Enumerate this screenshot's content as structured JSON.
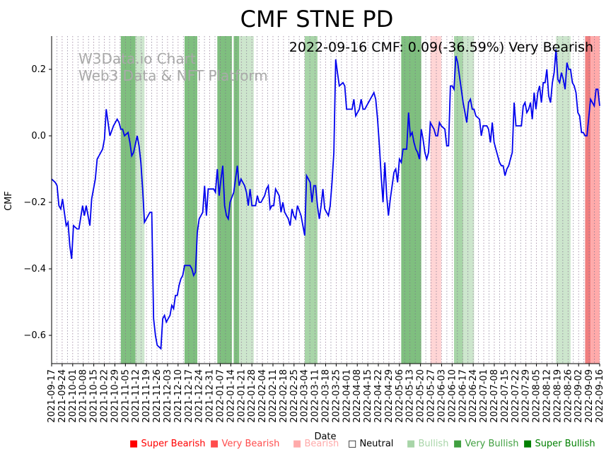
{
  "chart_data": {
    "type": "line",
    "title": "CMF STNE PD",
    "annotation": "2022-09-16 CMF: 0.09(-36.59%) Very Bearish",
    "watermark": [
      "W3Data.io Chart",
      "Web3 Data & NFT Platform"
    ],
    "xlabel": "Date",
    "ylabel": "CMF",
    "ylim": [
      -0.685,
      0.3
    ],
    "yticks": [
      0.2,
      0.0,
      -0.2,
      -0.4,
      -0.6
    ],
    "ytick_labels": [
      "0.2",
      "0.0",
      "−0.2",
      "−0.4",
      "−0.6"
    ],
    "xrange": [
      "2021-09-17",
      "2022-09-16"
    ],
    "xtick_labels": [
      "2021-09-17",
      "2021-09-24",
      "2021-10-01",
      "2021-10-08",
      "2021-10-15",
      "2021-10-22",
      "2021-10-29",
      "2021-11-05",
      "2021-11-12",
      "2021-11-19",
      "2021-11-26",
      "2021-12-03",
      "2021-12-10",
      "2021-12-17",
      "2021-12-24",
      "2021-12-31",
      "2022-01-07",
      "2022-01-14",
      "2022-01-21",
      "2022-01-28",
      "2022-02-04",
      "2022-02-11",
      "2022-02-18",
      "2022-02-25",
      "2022-03-04",
      "2022-03-11",
      "2022-03-18",
      "2022-03-25",
      "2022-04-01",
      "2022-04-08",
      "2022-04-15",
      "2022-04-22",
      "2022-04-29",
      "2022-05-06",
      "2022-05-13",
      "2022-05-20",
      "2022-05-27",
      "2022-06-03",
      "2022-06-10",
      "2022-06-17",
      "2022-06-24",
      "2022-07-01",
      "2022-07-08",
      "2022-07-15",
      "2022-07-22",
      "2022-07-29",
      "2022-08-05",
      "2022-08-12",
      "2022-08-19",
      "2022-08-26",
      "2022-09-02",
      "2022-09-09",
      "2022-09-16"
    ],
    "series": [
      {
        "name": "CMF",
        "color": "#0000ee",
        "points": [
          [
            0,
            -0.13
          ],
          [
            2,
            -0.14
          ],
          [
            3,
            -0.15
          ],
          [
            4,
            -0.21
          ],
          [
            5,
            -0.22
          ],
          [
            6,
            -0.19
          ],
          [
            8,
            -0.27
          ],
          [
            9,
            -0.26
          ],
          [
            10,
            -0.33
          ],
          [
            11,
            -0.37
          ],
          [
            12,
            -0.27
          ],
          [
            14,
            -0.28
          ],
          [
            15,
            -0.28
          ],
          [
            17,
            -0.21
          ],
          [
            18,
            -0.24
          ],
          [
            19,
            -0.21
          ],
          [
            21,
            -0.27
          ],
          [
            22,
            -0.19
          ],
          [
            24,
            -0.13
          ],
          [
            25,
            -0.07
          ],
          [
            28,
            -0.04
          ],
          [
            29,
            -0.01
          ],
          [
            30,
            0.08
          ],
          [
            32,
            0.0
          ],
          [
            34,
            0.03
          ],
          [
            36,
            0.05
          ],
          [
            37,
            0.04
          ],
          [
            38,
            0.02
          ],
          [
            39,
            0.02
          ],
          [
            40,
            0.0
          ],
          [
            42,
            0.01
          ],
          [
            43,
            -0.02
          ],
          [
            44,
            -0.06
          ],
          [
            45,
            -0.05
          ],
          [
            47,
            0.0
          ],
          [
            48,
            -0.03
          ],
          [
            49,
            -0.08
          ],
          [
            50,
            -0.16
          ],
          [
            51,
            -0.26
          ],
          [
            53,
            -0.24
          ],
          [
            54,
            -0.23
          ],
          [
            55,
            -0.23
          ],
          [
            56,
            -0.55
          ],
          [
            57,
            -0.6
          ],
          [
            58,
            -0.63
          ],
          [
            60,
            -0.64
          ],
          [
            61,
            -0.55
          ],
          [
            62,
            -0.54
          ],
          [
            63,
            -0.56
          ],
          [
            64,
            -0.55
          ],
          [
            65,
            -0.54
          ],
          [
            66,
            -0.51
          ],
          [
            67,
            -0.52
          ],
          [
            68,
            -0.48
          ],
          [
            69,
            -0.48
          ],
          [
            70,
            -0.45
          ],
          [
            71,
            -0.43
          ],
          [
            72,
            -0.42
          ],
          [
            73,
            -0.39
          ],
          [
            74,
            -0.39
          ],
          [
            75,
            -0.39
          ],
          [
            76,
            -0.39
          ],
          [
            77,
            -0.4
          ],
          [
            78,
            -0.42
          ],
          [
            79,
            -0.41
          ],
          [
            80,
            -0.29
          ],
          [
            81,
            -0.25
          ],
          [
            83,
            -0.23
          ],
          [
            84,
            -0.15
          ],
          [
            85,
            -0.24
          ],
          [
            86,
            -0.16
          ],
          [
            89,
            -0.16
          ],
          [
            90,
            -0.17
          ],
          [
            91,
            -0.1
          ],
          [
            92,
            -0.18
          ],
          [
            93,
            -0.13
          ],
          [
            94,
            -0.09
          ],
          [
            95,
            -0.21
          ],
          [
            96,
            -0.24
          ],
          [
            97,
            -0.25
          ],
          [
            98,
            -0.2
          ],
          [
            100,
            -0.17
          ],
          [
            101,
            -0.13
          ],
          [
            102,
            -0.09
          ],
          [
            103,
            -0.15
          ],
          [
            104,
            -0.13
          ],
          [
            106,
            -0.15
          ],
          [
            107,
            -0.17
          ],
          [
            108,
            -0.21
          ],
          [
            109,
            -0.16
          ],
          [
            110,
            -0.21
          ],
          [
            111,
            -0.21
          ],
          [
            112,
            -0.21
          ],
          [
            113,
            -0.18
          ],
          [
            114,
            -0.2
          ],
          [
            115,
            -0.2
          ],
          [
            117,
            -0.18
          ],
          [
            118,
            -0.16
          ],
          [
            119,
            -0.15
          ],
          [
            120,
            -0.22
          ],
          [
            121,
            -0.21
          ],
          [
            122,
            -0.21
          ],
          [
            123,
            -0.16
          ],
          [
            125,
            -0.18
          ],
          [
            126,
            -0.23
          ],
          [
            127,
            -0.2
          ],
          [
            128,
            -0.23
          ],
          [
            130,
            -0.25
          ],
          [
            131,
            -0.27
          ],
          [
            132,
            -0.22
          ],
          [
            133,
            -0.24
          ],
          [
            134,
            -0.25
          ],
          [
            135,
            -0.21
          ],
          [
            137,
            -0.24
          ],
          [
            138,
            -0.27
          ],
          [
            139,
            -0.3
          ],
          [
            140,
            -0.12
          ],
          [
            142,
            -0.14
          ],
          [
            143,
            -0.2
          ],
          [
            144,
            -0.15
          ],
          [
            145,
            -0.15
          ],
          [
            146,
            -0.21
          ],
          [
            147,
            -0.25
          ],
          [
            148,
            -0.21
          ],
          [
            149,
            -0.16
          ],
          [
            150,
            -0.22
          ],
          [
            151,
            -0.23
          ],
          [
            152,
            -0.24
          ],
          [
            153,
            -0.21
          ],
          [
            154,
            -0.14
          ],
          [
            155,
            -0.05
          ],
          [
            156,
            0.23
          ],
          [
            157,
            0.19
          ],
          [
            158,
            0.15
          ],
          [
            160,
            0.16
          ],
          [
            161,
            0.15
          ],
          [
            162,
            0.08
          ],
          [
            164,
            0.08
          ],
          [
            165,
            0.08
          ],
          [
            166,
            0.11
          ],
          [
            167,
            0.06
          ],
          [
            169,
            0.08
          ],
          [
            170,
            0.11
          ],
          [
            171,
            0.08
          ],
          [
            172,
            0.08
          ],
          [
            173,
            0.09
          ],
          [
            175,
            0.11
          ],
          [
            177,
            0.13
          ],
          [
            178,
            0.11
          ],
          [
            179,
            0.05
          ],
          [
            180,
            -0.03
          ],
          [
            181,
            -0.12
          ],
          [
            182,
            -0.2
          ],
          [
            183,
            -0.08
          ],
          [
            184,
            -0.18
          ],
          [
            185,
            -0.24
          ],
          [
            186,
            -0.19
          ],
          [
            187,
            -0.15
          ],
          [
            188,
            -0.11
          ],
          [
            189,
            -0.1
          ],
          [
            190,
            -0.14
          ],
          [
            191,
            -0.07
          ],
          [
            192,
            -0.08
          ],
          [
            193,
            -0.04
          ],
          [
            195,
            -0.04
          ],
          [
            196,
            0.07
          ],
          [
            197,
            0.0
          ],
          [
            198,
            0.01
          ],
          [
            199,
            -0.02
          ],
          [
            200,
            -0.04
          ],
          [
            201,
            -0.05
          ],
          [
            202,
            -0.07
          ],
          [
            203,
            0.02
          ],
          [
            204,
            -0.01
          ],
          [
            205,
            -0.05
          ],
          [
            206,
            -0.07
          ],
          [
            207,
            -0.05
          ],
          [
            208,
            0.04
          ],
          [
            209,
            0.03
          ],
          [
            210,
            0.02
          ],
          [
            211,
            0.0
          ],
          [
            212,
            0.0
          ],
          [
            213,
            0.04
          ],
          [
            214,
            0.03
          ],
          [
            216,
            0.02
          ],
          [
            217,
            -0.03
          ],
          [
            218,
            -0.03
          ],
          [
            219,
            0.15
          ],
          [
            220,
            0.15
          ],
          [
            221,
            0.14
          ],
          [
            222,
            0.24
          ],
          [
            223,
            0.22
          ],
          [
            224,
            0.18
          ],
          [
            225,
            0.14
          ],
          [
            226,
            0.1
          ],
          [
            227,
            0.07
          ],
          [
            228,
            0.04
          ],
          [
            229,
            0.1
          ],
          [
            230,
            0.11
          ],
          [
            231,
            0.08
          ],
          [
            232,
            0.08
          ],
          [
            233,
            0.06
          ],
          [
            235,
            0.05
          ],
          [
            236,
            0.0
          ],
          [
            237,
            0.03
          ],
          [
            238,
            0.03
          ],
          [
            239,
            0.03
          ],
          [
            240,
            0.02
          ],
          [
            241,
            -0.02
          ],
          [
            242,
            0.04
          ],
          [
            243,
            -0.02
          ],
          [
            244,
            -0.04
          ],
          [
            245,
            -0.06
          ],
          [
            246,
            -0.08
          ],
          [
            247,
            -0.09
          ],
          [
            248,
            -0.09
          ],
          [
            249,
            -0.12
          ],
          [
            250,
            -0.1
          ],
          [
            251,
            -0.09
          ],
          [
            252,
            -0.07
          ],
          [
            253,
            -0.05
          ],
          [
            254,
            0.1
          ],
          [
            255,
            0.03
          ],
          [
            256,
            0.03
          ],
          [
            258,
            0.03
          ],
          [
            259,
            0.09
          ],
          [
            260,
            0.1
          ],
          [
            261,
            0.07
          ],
          [
            262,
            0.08
          ],
          [
            263,
            0.1
          ],
          [
            264,
            0.05
          ],
          [
            265,
            0.13
          ],
          [
            266,
            0.08
          ],
          [
            267,
            0.13
          ],
          [
            268,
            0.15
          ],
          [
            269,
            0.1
          ],
          [
            270,
            0.16
          ],
          [
            271,
            0.16
          ],
          [
            272,
            0.2
          ],
          [
            273,
            0.12
          ],
          [
            274,
            0.1
          ],
          [
            275,
            0.16
          ],
          [
            276,
            0.19
          ],
          [
            277,
            0.26
          ],
          [
            278,
            0.17
          ],
          [
            279,
            0.16
          ],
          [
            280,
            0.19
          ],
          [
            281,
            0.17
          ],
          [
            282,
            0.14
          ],
          [
            283,
            0.22
          ],
          [
            284,
            0.2
          ],
          [
            285,
            0.2
          ],
          [
            286,
            0.16
          ],
          [
            287,
            0.15
          ],
          [
            288,
            0.13
          ],
          [
            289,
            0.07
          ],
          [
            290,
            0.06
          ],
          [
            291,
            0.01
          ],
          [
            292,
            0.01
          ],
          [
            293,
            0.0
          ],
          [
            294,
            0.0
          ],
          [
            296,
            0.11
          ],
          [
            297,
            0.1
          ],
          [
            298,
            0.09
          ],
          [
            299,
            0.14
          ],
          [
            300,
            0.14
          ],
          [
            301,
            0.09
          ]
        ]
      }
    ],
    "bands": [
      {
        "start": 38,
        "end": 46,
        "color": "#7fbf7f",
        "label": "Very Bullish"
      },
      {
        "start": 46,
        "end": 51,
        "color": "#cde6cd",
        "label": "Bullish"
      },
      {
        "start": 73,
        "end": 80,
        "color": "#7fbf7f",
        "label": "Very Bullish"
      },
      {
        "start": 91,
        "end": 99,
        "color": "#7fbf7f",
        "label": "Very Bullish"
      },
      {
        "start": 100,
        "end": 103,
        "color": "#7fbf7f",
        "label": "Very Bullish"
      },
      {
        "start": 103,
        "end": 111,
        "color": "#cde6cd",
        "label": "Bullish"
      },
      {
        "start": 139,
        "end": 146,
        "color": "#a8d5a8",
        "label": "Bullish"
      },
      {
        "start": 192,
        "end": 203,
        "color": "#7fbf7f",
        "label": "Very Bullish"
      },
      {
        "start": 208,
        "end": 214,
        "color": "#ffd5d5",
        "label": "Bearish"
      },
      {
        "start": 221,
        "end": 226,
        "color": "#a8d5a8",
        "label": "Bullish"
      },
      {
        "start": 226,
        "end": 232,
        "color": "#cde6cd",
        "label": "Bullish"
      },
      {
        "start": 277,
        "end": 285,
        "color": "#cde6cd",
        "label": "Bullish"
      },
      {
        "start": 293,
        "end": 296,
        "color": "#f07f7f",
        "label": "Very Bearish"
      },
      {
        "start": 296,
        "end": 301,
        "color": "#ffaaaa",
        "label": "Bearish"
      }
    ],
    "x_total": 301,
    "legend": [
      {
        "label": "Super Bearish",
        "color": "#ff0000"
      },
      {
        "label": "Very Bearish",
        "color": "#ff4c4c"
      },
      {
        "label": "Bearish",
        "color": "#ffaaaa"
      },
      {
        "label": "Neutral",
        "color": "#000000"
      },
      {
        "label": "Bullish",
        "color": "#a8d5a8"
      },
      {
        "label": "Very Bullish",
        "color": "#3f9f3f"
      },
      {
        "label": "Super Bullish",
        "color": "#008000"
      }
    ]
  }
}
